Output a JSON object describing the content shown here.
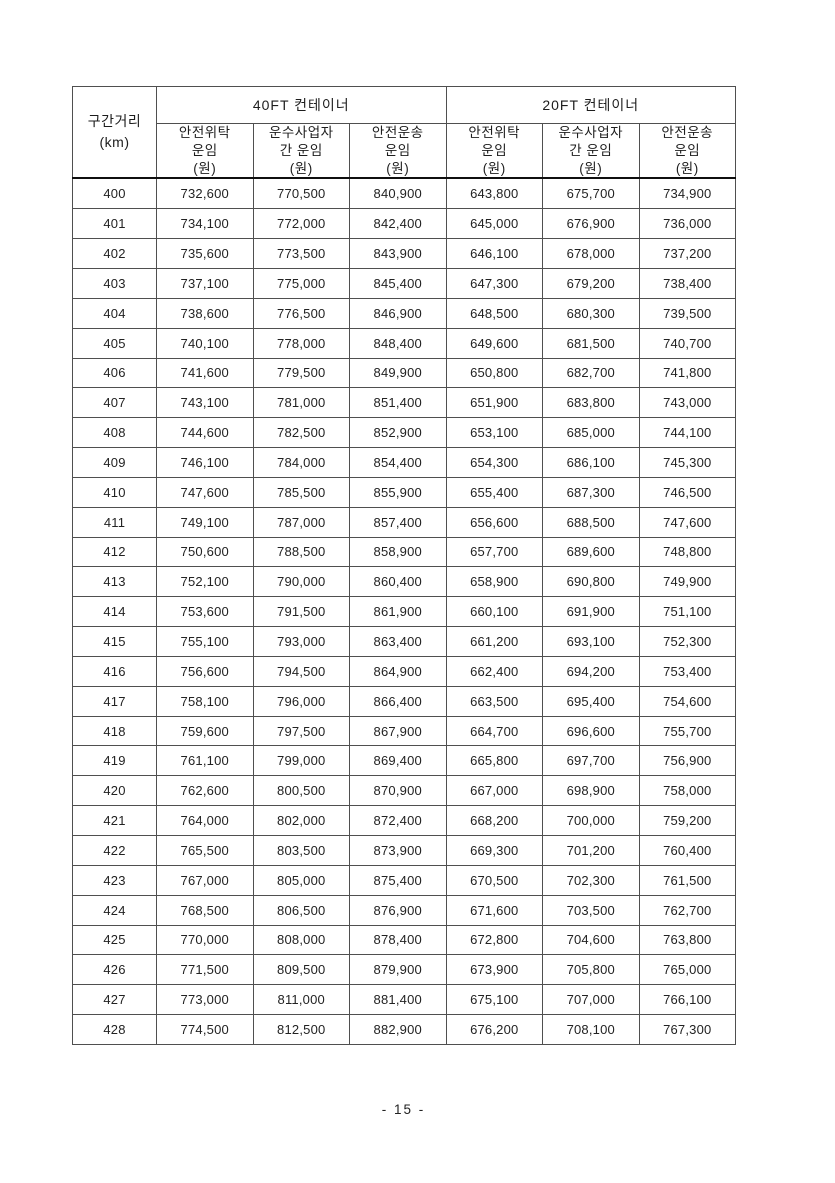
{
  "page": {
    "footer_page_number": "- 15 -"
  },
  "colors": {
    "page_background": "#ffffff",
    "text": "#1d1d1d",
    "grid_line": "#4f4f4f",
    "header_rule": "#0f0f0f"
  },
  "table": {
    "distance_header": "구간거리\n(km)",
    "group_headers": [
      "40FT 컨테이너",
      "20FT 컨테이너"
    ],
    "sub_headers": [
      "안전위탁\n운임\n(원)",
      "운수사업자\n간 운임\n(원)",
      "안전운송\n운임\n(원)",
      "안전위탁\n운임\n(원)",
      "운수사업자\n간 운임\n(원)",
      "안전운송\n운임\n(원)"
    ],
    "rows": [
      [
        "400",
        "732,600",
        "770,500",
        "840,900",
        "643,800",
        "675,700",
        "734,900"
      ],
      [
        "401",
        "734,100",
        "772,000",
        "842,400",
        "645,000",
        "676,900",
        "736,000"
      ],
      [
        "402",
        "735,600",
        "773,500",
        "843,900",
        "646,100",
        "678,000",
        "737,200"
      ],
      [
        "403",
        "737,100",
        "775,000",
        "845,400",
        "647,300",
        "679,200",
        "738,400"
      ],
      [
        "404",
        "738,600",
        "776,500",
        "846,900",
        "648,500",
        "680,300",
        "739,500"
      ],
      [
        "405",
        "740,100",
        "778,000",
        "848,400",
        "649,600",
        "681,500",
        "740,700"
      ],
      [
        "406",
        "741,600",
        "779,500",
        "849,900",
        "650,800",
        "682,700",
        "741,800"
      ],
      [
        "407",
        "743,100",
        "781,000",
        "851,400",
        "651,900",
        "683,800",
        "743,000"
      ],
      [
        "408",
        "744,600",
        "782,500",
        "852,900",
        "653,100",
        "685,000",
        "744,100"
      ],
      [
        "409",
        "746,100",
        "784,000",
        "854,400",
        "654,300",
        "686,100",
        "745,300"
      ],
      [
        "410",
        "747,600",
        "785,500",
        "855,900",
        "655,400",
        "687,300",
        "746,500"
      ],
      [
        "411",
        "749,100",
        "787,000",
        "857,400",
        "656,600",
        "688,500",
        "747,600"
      ],
      [
        "412",
        "750,600",
        "788,500",
        "858,900",
        "657,700",
        "689,600",
        "748,800"
      ],
      [
        "413",
        "752,100",
        "790,000",
        "860,400",
        "658,900",
        "690,800",
        "749,900"
      ],
      [
        "414",
        "753,600",
        "791,500",
        "861,900",
        "660,100",
        "691,900",
        "751,100"
      ],
      [
        "415",
        "755,100",
        "793,000",
        "863,400",
        "661,200",
        "693,100",
        "752,300"
      ],
      [
        "416",
        "756,600",
        "794,500",
        "864,900",
        "662,400",
        "694,200",
        "753,400"
      ],
      [
        "417",
        "758,100",
        "796,000",
        "866,400",
        "663,500",
        "695,400",
        "754,600"
      ],
      [
        "418",
        "759,600",
        "797,500",
        "867,900",
        "664,700",
        "696,600",
        "755,700"
      ],
      [
        "419",
        "761,100",
        "799,000",
        "869,400",
        "665,800",
        "697,700",
        "756,900"
      ],
      [
        "420",
        "762,600",
        "800,500",
        "870,900",
        "667,000",
        "698,900",
        "758,000"
      ],
      [
        "421",
        "764,000",
        "802,000",
        "872,400",
        "668,200",
        "700,000",
        "759,200"
      ],
      [
        "422",
        "765,500",
        "803,500",
        "873,900",
        "669,300",
        "701,200",
        "760,400"
      ],
      [
        "423",
        "767,000",
        "805,000",
        "875,400",
        "670,500",
        "702,300",
        "761,500"
      ],
      [
        "424",
        "768,500",
        "806,500",
        "876,900",
        "671,600",
        "703,500",
        "762,700"
      ],
      [
        "425",
        "770,000",
        "808,000",
        "878,400",
        "672,800",
        "704,600",
        "763,800"
      ],
      [
        "426",
        "771,500",
        "809,500",
        "879,900",
        "673,900",
        "705,800",
        "765,000"
      ],
      [
        "427",
        "773,000",
        "811,000",
        "881,400",
        "675,100",
        "707,000",
        "766,100"
      ],
      [
        "428",
        "774,500",
        "812,500",
        "882,900",
        "676,200",
        "708,100",
        "767,300"
      ]
    ]
  }
}
